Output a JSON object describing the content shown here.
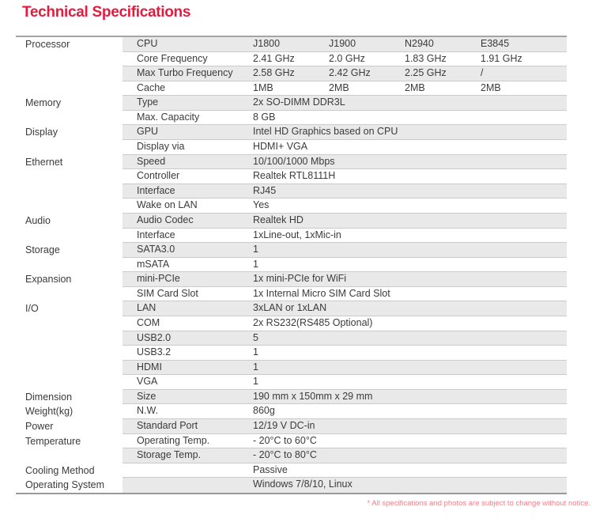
{
  "page": {
    "title": "Technical Specifications",
    "footnote": "* All specifications and photos are subject to change without notice."
  },
  "colors": {
    "title_red": "#e8193d",
    "footnote_red": "#f2808a",
    "stripe_gray": "#e9e9e9",
    "rule_gray": "#a4a4a4",
    "separator_gray": "#cbcbcb",
    "text_dark": "#3b3b3b"
  },
  "table": {
    "rows": [
      {
        "category": "Processor",
        "label": "CPU",
        "values": [
          "J1800",
          "J1900",
          "N2940",
          "E3845"
        ]
      },
      {
        "category": "",
        "label": "Core Frequency",
        "values": [
          "2.41 GHz",
          "2.0 GHz",
          "1.83 GHz",
          "1.91 GHz"
        ]
      },
      {
        "category": "",
        "label": "Max Turbo Frequency",
        "values": [
          "2.58 GHz",
          "2.42 GHz",
          "2.25 GHz",
          "/"
        ]
      },
      {
        "category": "",
        "label": "Cache",
        "values": [
          "1MB",
          "2MB",
          "2MB",
          "2MB"
        ]
      },
      {
        "category": "Memory",
        "label": "Type",
        "values": [
          "2x SO-DIMM DDR3L"
        ]
      },
      {
        "category": "",
        "label": "Max. Capacity",
        "values": [
          "8 GB"
        ]
      },
      {
        "category": "Display",
        "label": "GPU",
        "values": [
          "Intel HD Graphics based on CPU"
        ]
      },
      {
        "category": "",
        "label": "Display via",
        "values": [
          "HDMI+ VGA"
        ]
      },
      {
        "category": "Ethernet",
        "label": "Speed",
        "values": [
          "10/100/1000 Mbps"
        ]
      },
      {
        "category": "",
        "label": "Controller",
        "values": [
          "Realtek RTL8111H"
        ]
      },
      {
        "category": "",
        "label": "Interface",
        "values": [
          "RJ45"
        ]
      },
      {
        "category": "",
        "label": "Wake on LAN",
        "values": [
          "Yes"
        ]
      },
      {
        "category": "Audio",
        "label": "Audio Codec",
        "values": [
          "Realtek HD"
        ]
      },
      {
        "category": "",
        "label": "Interface",
        "values": [
          "1xLine-out, 1xMic-in"
        ]
      },
      {
        "category": "Storage",
        "label": "SATA3.0",
        "values": [
          "1"
        ]
      },
      {
        "category": "",
        "label": "mSATA",
        "values": [
          "1"
        ]
      },
      {
        "category": "Expansion",
        "label": "mini-PCIe",
        "values": [
          "1x mini-PCIe for WiFi"
        ]
      },
      {
        "category": "",
        "label": "SIM Card Slot",
        "values": [
          "1x Internal Micro SIM Card Slot"
        ]
      },
      {
        "category": "I/O",
        "label": "LAN",
        "values": [
          "3xLAN or 1xLAN"
        ]
      },
      {
        "category": "",
        "label": "COM",
        "values": [
          "2x RS232(RS485 Optional)"
        ]
      },
      {
        "category": "",
        "label": "USB2.0",
        "values": [
          "5"
        ]
      },
      {
        "category": "",
        "label": "USB3.2",
        "values": [
          "1"
        ]
      },
      {
        "category": "",
        "label": "HDMI",
        "values": [
          "1"
        ]
      },
      {
        "category": "",
        "label": "VGA",
        "values": [
          "1"
        ]
      },
      {
        "category": "Dimension",
        "label": "Size",
        "values": [
          "190 mm x 150mm x 29 mm"
        ]
      },
      {
        "category": "Weight(kg)",
        "label": "N.W.",
        "values": [
          "860g"
        ]
      },
      {
        "category": "Power",
        "label": "Standard Port",
        "values": [
          "12/19 V DC-in"
        ]
      },
      {
        "category": "Temperature",
        "label": "Operating Temp.",
        "values": [
          "- 20°C to 60°C"
        ]
      },
      {
        "category": "",
        "label": "Storage Temp.",
        "values": [
          "- 20°C to 80°C"
        ]
      },
      {
        "category": "Cooling Method",
        "label": "",
        "values": [
          "Passive"
        ]
      },
      {
        "category": "Operating System",
        "label": "",
        "values": [
          "Windows 7/8/10, Linux"
        ]
      }
    ]
  }
}
